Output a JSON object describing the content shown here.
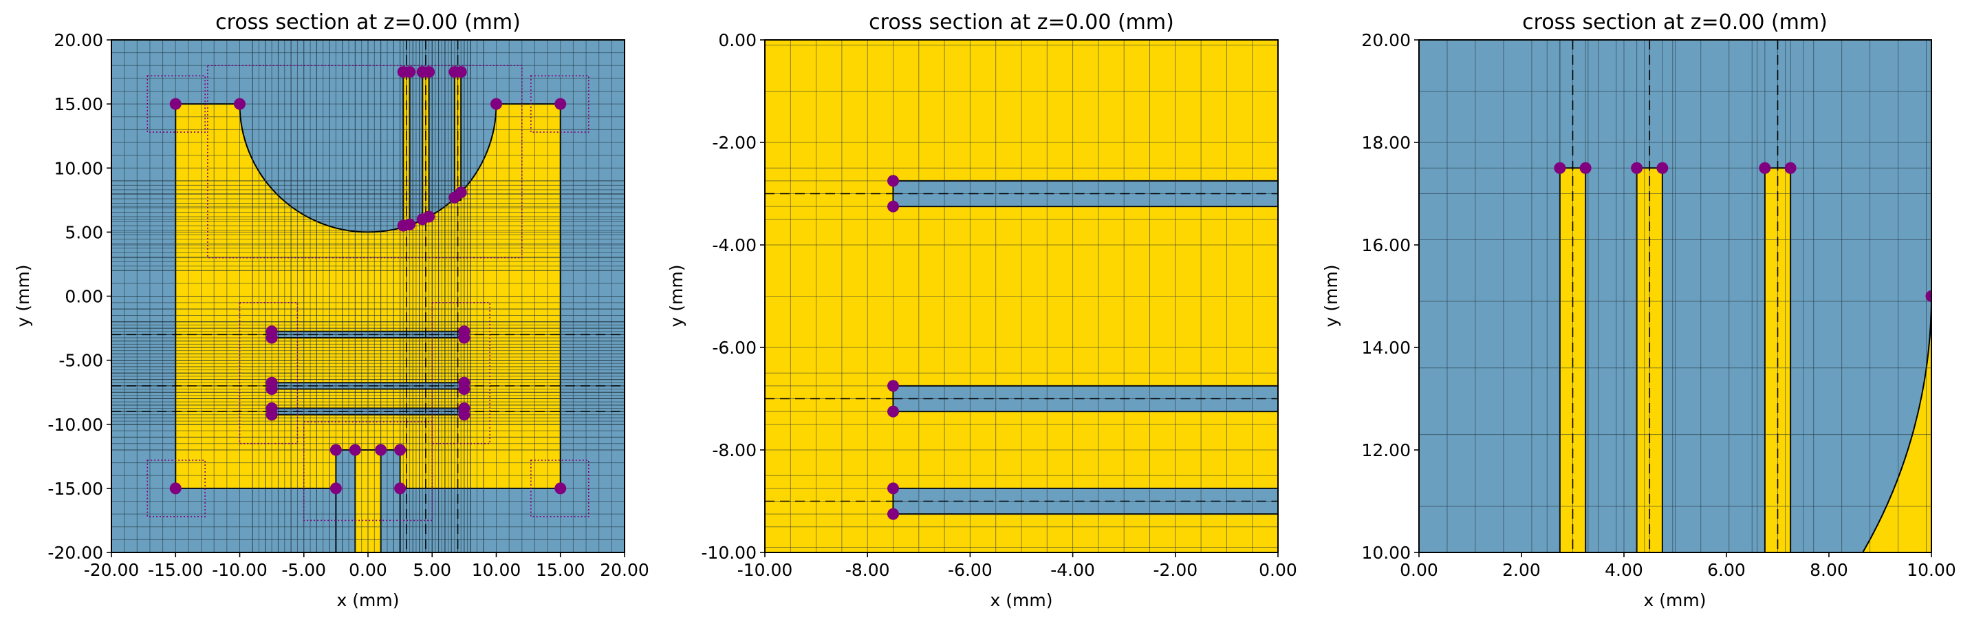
{
  "colors": {
    "metal": "#FFD700",
    "dielectric": "#6A9FBF",
    "marker": "#800080",
    "outline": "#000000",
    "grid": "#1f2f3a"
  },
  "chart_data": [
    {
      "type": "cross-section",
      "title": "cross section at z=0.00 (mm)",
      "xlabel": "x (mm)",
      "ylabel": "y (mm)",
      "xlim": [
        -20,
        20
      ],
      "ylim": [
        -20,
        20
      ],
      "xticks": [
        "-20.00",
        "-15.00",
        "-10.00",
        "-5.00",
        "0.00",
        "5.00",
        "10.00",
        "15.00",
        "20.00"
      ],
      "yticks": [
        "20.00",
        "15.00",
        "10.00",
        "5.00",
        "0.00",
        "-5.00",
        "-10.00",
        "-15.00",
        "-20.00"
      ],
      "background": "dielectric",
      "patch": {
        "outer": [
          -15,
          -15,
          15,
          15
        ],
        "circle_cutout": {
          "cx": 0,
          "cy": 15,
          "r": 10
        },
        "slots_vertical": [
          [
            2.75,
            3.25,
            5.5,
            17.5
          ],
          [
            4.25,
            4.75,
            6.0,
            17.5
          ],
          [
            6.75,
            7.25,
            7.5,
            17.5
          ]
        ],
        "slots_horizontal": [
          [
            -7.5,
            7.5,
            -3.25,
            -2.75
          ],
          [
            -7.5,
            7.5,
            -7.25,
            -6.75
          ],
          [
            -7.5,
            7.5,
            -9.25,
            -8.75
          ]
        ],
        "feed_cutout": [
          -2.5,
          2.5,
          -20,
          -12
        ],
        "feed_line": [
          -1,
          1,
          -20,
          -12
        ]
      },
      "dashed_x": [
        3.0,
        4.5,
        7.0
      ],
      "dashed_y": [
        -3.0,
        -7.0,
        -9.0
      ],
      "markers": [
        [
          -15,
          15
        ],
        [
          -10,
          15
        ],
        [
          10,
          15
        ],
        [
          15,
          15
        ],
        [
          2.75,
          17.5
        ],
        [
          3.25,
          17.5
        ],
        [
          4.25,
          17.5
        ],
        [
          4.75,
          17.5
        ],
        [
          6.75,
          17.5
        ],
        [
          7.25,
          17.5
        ],
        [
          2.75,
          5.5
        ],
        [
          3.25,
          5.6
        ],
        [
          4.25,
          6.0
        ],
        [
          4.75,
          6.2
        ],
        [
          6.75,
          7.7
        ],
        [
          7.25,
          8.1
        ],
        [
          -7.5,
          -2.75
        ],
        [
          -7.5,
          -3.25
        ],
        [
          7.5,
          -2.75
        ],
        [
          7.5,
          -3.25
        ],
        [
          -7.5,
          -6.75
        ],
        [
          -7.5,
          -7.25
        ],
        [
          7.5,
          -6.75
        ],
        [
          7.5,
          -7.25
        ],
        [
          -7.5,
          -8.75
        ],
        [
          -7.5,
          -9.25
        ],
        [
          7.5,
          -8.75
        ],
        [
          7.5,
          -9.25
        ],
        [
          -2.5,
          -12
        ],
        [
          -1,
          -12
        ],
        [
          1,
          -12
        ],
        [
          2.5,
          -12
        ],
        [
          -15,
          -15
        ],
        [
          -2.5,
          -15
        ],
        [
          2.5,
          -15
        ],
        [
          15,
          -15
        ]
      ],
      "refine_boxes": [
        [
          -17.2,
          -12.7,
          12.8,
          17.2
        ],
        [
          12.7,
          17.2,
          12.8,
          17.2
        ],
        [
          -17.2,
          -12.7,
          -17.2,
          -12.8
        ],
        [
          12.7,
          17.2,
          -17.2,
          -12.8
        ],
        [
          -12.5,
          12.0,
          3.0,
          18.0
        ],
        [
          -10.0,
          -5.5,
          -11.5,
          -0.5
        ],
        [
          5.0,
          9.5,
          -11.5,
          -0.5
        ],
        [
          -5.0,
          5.0,
          -17.5,
          -9.8
        ]
      ]
    },
    {
      "type": "cross-section",
      "title": "cross section at z=0.00 (mm)",
      "xlabel": "x (mm)",
      "ylabel": "y (mm)",
      "xlim": [
        -10,
        0
      ],
      "ylim": [
        -10,
        0
      ],
      "xticks": [
        "-10.00",
        "-8.00",
        "-6.00",
        "-4.00",
        "-2.00",
        "0.00"
      ],
      "yticks": [
        "0.00",
        "-2.00",
        "-4.00",
        "-6.00",
        "-8.00",
        "-10.00"
      ],
      "background": "metal",
      "dashed_y": [
        -3.0,
        -7.0,
        -9.0
      ],
      "markers": [
        [
          -7.5,
          -2.75
        ],
        [
          -7.5,
          -3.25
        ],
        [
          -7.5,
          -6.75
        ],
        [
          -7.5,
          -7.25
        ],
        [
          -7.5,
          -8.75
        ],
        [
          -7.5,
          -9.25
        ]
      ]
    },
    {
      "type": "cross-section",
      "title": "cross section at z=0.00 (mm)",
      "xlabel": "x (mm)",
      "ylabel": "y (mm)",
      "xlim": [
        0,
        10
      ],
      "ylim": [
        10,
        20
      ],
      "xticks": [
        "0.00",
        "2.00",
        "4.00",
        "6.00",
        "8.00",
        "10.00"
      ],
      "yticks": [
        "20.00",
        "18.00",
        "16.00",
        "14.00",
        "12.00",
        "10.00"
      ],
      "background": "dielectric",
      "dashed_x": [
        3.0,
        4.5,
        7.0
      ],
      "markers": [
        [
          2.75,
          17.5
        ],
        [
          3.25,
          17.5
        ],
        [
          4.25,
          17.5
        ],
        [
          4.75,
          17.5
        ],
        [
          6.75,
          17.5
        ],
        [
          7.25,
          17.5
        ],
        [
          10,
          15
        ]
      ]
    }
  ]
}
